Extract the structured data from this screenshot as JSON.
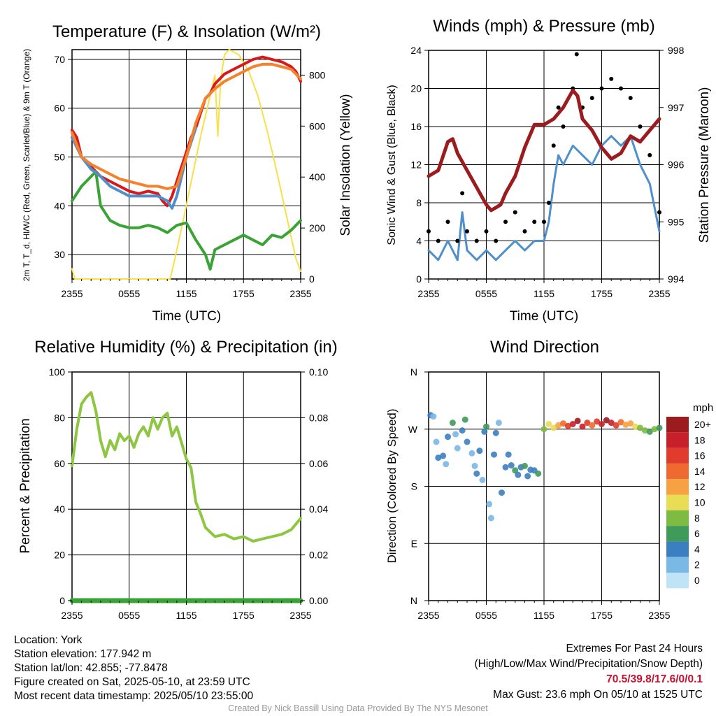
{
  "panels": {
    "temperature": {
      "title": "Temperature (F) & Insolation (W/m²)",
      "ylabel_left": "2m T, T_d, HI/WC (Red, Green, Scarlet/Blue) & 9m T (Orange)",
      "ylabel_right": "Solar Insolation (Yellow)",
      "xlabel": "Time (UTC)"
    },
    "winds": {
      "title": "Winds (mph) & Pressure (mb)",
      "ylabel_left": "Sonic Wind & Gust (Blue, Black)",
      "ylabel_right": "Station Pressure (Maroon)",
      "xlabel": "Time (UTC)"
    },
    "humidity": {
      "title": "Relative Humidity (%) & Precipitation (in)",
      "ylabel_left": "Percent & Precipitation"
    },
    "direction": {
      "title": "Wind Direction",
      "ylabel_left": "Direction (Colored By Speed)",
      "legend_title": "mph",
      "legend_labels": [
        "20+",
        "18",
        "16",
        "14",
        "12",
        "10",
        "8",
        "6",
        "4",
        "2",
        "0"
      ],
      "legend_colors": [
        "#9b1b1e",
        "#c8202a",
        "#e03b2c",
        "#ef6a2e",
        "#f6a142",
        "#e8dd55",
        "#7dbb43",
        "#3f9b5a",
        "#3c7fc0",
        "#7ab8e6",
        "#bfe3f7"
      ]
    }
  },
  "chart_data": [
    {
      "type": "line",
      "panel": "temperature",
      "x_ticks": [
        "2355",
        "0555",
        "1155",
        "1755",
        "2355"
      ],
      "x_hours": [
        0,
        24
      ],
      "ylim_left": [
        25,
        72
      ],
      "yticks_left": [
        30,
        40,
        50,
        60,
        70
      ],
      "ylim_right": [
        0,
        900
      ],
      "yticks_right": [
        0,
        200,
        400,
        600,
        800
      ],
      "series": [
        {
          "label": "2m T",
          "color": "#d7191c",
          "axis": "left",
          "x": [
            0,
            0.5,
            1,
            2,
            3,
            4,
            5,
            6,
            7,
            8,
            9,
            9.5,
            10,
            10.5,
            11,
            11.5,
            12,
            12.5,
            13,
            13.5,
            14,
            14.5,
            15,
            16,
            17,
            18,
            19,
            20,
            21,
            22,
            22.5,
            23,
            23.5,
            24
          ],
          "y": [
            55.5,
            54,
            50,
            48,
            46,
            45,
            44,
            43,
            42.5,
            43,
            42.5,
            41,
            40,
            42,
            45,
            48,
            51,
            54,
            56,
            59,
            62,
            63,
            65,
            67,
            68,
            69,
            70,
            70.5,
            70,
            69.5,
            69,
            68.5,
            67.5,
            65.5
          ]
        },
        {
          "label": "Td",
          "color": "#3aa335",
          "axis": "left",
          "x": [
            0,
            1,
            2,
            2.5,
            3,
            4,
            5,
            6,
            7,
            8,
            9,
            10,
            11,
            12,
            13,
            14,
            14.5,
            15,
            16,
            17,
            18,
            19,
            20,
            21,
            22,
            23,
            24
          ],
          "y": [
            41,
            44,
            46,
            47,
            40,
            37,
            36,
            35.5,
            35.5,
            36,
            35.5,
            34.5,
            36,
            36.5,
            33,
            30,
            27,
            31,
            32,
            33,
            34,
            33,
            32,
            34,
            33.5,
            35,
            37
          ]
        },
        {
          "label": "HI/WC",
          "color": "#4f8fcc",
          "axis": "left",
          "x": [
            0,
            1,
            2,
            3,
            4,
            5,
            6,
            7,
            8,
            9,
            10,
            10.5,
            11,
            12,
            13
          ],
          "y": [
            54,
            50,
            47.5,
            46,
            44,
            43,
            42,
            42,
            42,
            42,
            41,
            39.5,
            42,
            50,
            56
          ]
        },
        {
          "label": "9m T",
          "color": "#f4812e",
          "axis": "left",
          "x": [
            0,
            1,
            2,
            3,
            4,
            5,
            6,
            7,
            8,
            9,
            10,
            11,
            12,
            13,
            14,
            15,
            16,
            17,
            18,
            19,
            20,
            21,
            22,
            23,
            24
          ],
          "y": [
            55,
            50,
            48.5,
            47.5,
            46.5,
            45.5,
            45,
            44.5,
            44,
            44,
            43.5,
            44,
            50,
            57,
            62,
            64,
            65.5,
            66.5,
            67.5,
            68.5,
            69,
            69,
            68.5,
            68,
            66
          ]
        },
        {
          "label": "Solar Insolation",
          "color": "#f7e146",
          "axis": "right",
          "x": [
            0,
            0.3,
            1,
            5,
            9,
            10.3,
            10.8,
            11.5,
            12.5,
            13.5,
            14.5,
            15,
            15.3,
            15.6,
            16,
            16.5,
            17.5,
            18.5,
            19.5,
            20.5,
            21.5,
            22.5,
            23.5,
            24
          ],
          "y": [
            40,
            0,
            0,
            0,
            0,
            0,
            80,
            200,
            380,
            560,
            720,
            800,
            560,
            780,
            880,
            900,
            880,
            820,
            720,
            580,
            420,
            250,
            80,
            30
          ]
        }
      ]
    },
    {
      "type": "line",
      "panel": "winds",
      "x_ticks": [
        "2355",
        "0555",
        "1155",
        "1755",
        "2355"
      ],
      "x_hours": [
        0,
        24
      ],
      "ylim_left": [
        0,
        24
      ],
      "yticks_left": [
        0,
        4,
        8,
        12,
        16,
        20,
        24
      ],
      "ylim_right": [
        994,
        998
      ],
      "yticks_right": [
        994,
        995,
        996,
        997,
        998
      ],
      "series": [
        {
          "label": "Sonic Wind",
          "color": "#4f8fcc",
          "axis": "left",
          "x": [
            0,
            1,
            2,
            3,
            3.5,
            4,
            5,
            6,
            7,
            8,
            9,
            10,
            11,
            12,
            12.5,
            13,
            13.5,
            14,
            15,
            16,
            17,
            18,
            19,
            20,
            21,
            22,
            23,
            24
          ],
          "y": [
            3,
            2,
            4,
            2,
            7,
            3,
            2,
            3,
            2,
            3,
            4,
            3,
            4,
            4,
            6,
            10,
            13,
            12,
            14,
            13,
            12,
            14,
            15,
            14,
            15,
            12,
            10,
            5
          ]
        },
        {
          "label": "Gust",
          "color": "#000000",
          "axis": "left",
          "style": "dots",
          "x": [
            0,
            1,
            2,
            3,
            3.5,
            4,
            5,
            6,
            7,
            8,
            9,
            10,
            11,
            12,
            12.5,
            13,
            13.5,
            14,
            15,
            15.4,
            16,
            17,
            18,
            19,
            20,
            21,
            22,
            23,
            24
          ],
          "y": [
            5,
            4,
            6,
            4,
            9,
            5,
            4,
            5,
            4,
            6,
            7,
            5,
            6,
            6,
            8,
            14,
            18,
            16,
            20,
            23.6,
            18,
            19,
            20,
            21,
            20,
            19,
            16,
            13,
            7
          ]
        },
        {
          "label": "Station Pressure",
          "color": "#9b1b1e",
          "axis": "right",
          "x": [
            0,
            1,
            2,
            2.5,
            3,
            4,
            5,
            6,
            6.5,
            7,
            7.5,
            8,
            9,
            10,
            11,
            12,
            13,
            14,
            15,
            15.5,
            16,
            17,
            18,
            19,
            20,
            21,
            22,
            23,
            24
          ],
          "y": [
            995.8,
            995.9,
            996.4,
            996.45,
            996.2,
            995.9,
            995.6,
            995.3,
            995.2,
            995.25,
            995.3,
            995.5,
            995.8,
            996.3,
            996.7,
            996.7,
            996.8,
            997.0,
            997.3,
            997.2,
            996.8,
            996.6,
            996.3,
            996.1,
            996.2,
            996.5,
            996.4,
            996.6,
            996.8
          ]
        }
      ]
    },
    {
      "type": "line",
      "panel": "humidity",
      "x_ticks": [
        "2355",
        "0555",
        "1155",
        "1755",
        "2355"
      ],
      "x_hours": [
        0,
        24
      ],
      "ylim_left": [
        0,
        100
      ],
      "yticks_left": [
        0,
        20,
        40,
        60,
        80,
        100
      ],
      "ylim_right": [
        0,
        0.1
      ],
      "yticks_right": [
        "0.00",
        "0.02",
        "0.04",
        "0.06",
        "0.08",
        "0.10"
      ],
      "series": [
        {
          "label": "Relative Humidity",
          "color": "#8dc641",
          "axis": "left",
          "x": [
            0,
            0.5,
            1,
            1.5,
            2,
            2.5,
            3,
            3.5,
            4,
            4.5,
            5,
            5.5,
            6,
            6.5,
            7,
            7.5,
            8,
            8.5,
            9,
            9.5,
            10,
            10.5,
            11,
            12,
            12.5,
            13,
            13.5,
            14,
            14.5,
            15,
            16,
            17,
            18,
            19,
            20,
            21,
            22,
            23,
            24
          ],
          "y": [
            59,
            75,
            86,
            89,
            91,
            83,
            70,
            63,
            70,
            66,
            73,
            70,
            72,
            67,
            73,
            76,
            72,
            80,
            75,
            80,
            82,
            72,
            76,
            62,
            58,
            43,
            38,
            32,
            30,
            28,
            29,
            27,
            28,
            26,
            27,
            28,
            29,
            31,
            36
          ]
        },
        {
          "label": "Precipitation",
          "color": "#3aa335",
          "axis": "right",
          "x": [
            0,
            24
          ],
          "y": [
            0,
            0
          ]
        }
      ]
    },
    {
      "type": "scatter",
      "panel": "direction",
      "x_ticks": [
        "2355",
        "0555",
        "1155",
        "1755",
        "2355"
      ],
      "x_hours": [
        0,
        24
      ],
      "yticks": [
        "N",
        "E",
        "S",
        "W",
        "N"
      ],
      "ylim_degrees": [
        0,
        360
      ],
      "points": [
        [
          0.2,
          292,
          3
        ],
        [
          0.5,
          290,
          2
        ],
        [
          0.8,
          250,
          1
        ],
        [
          1,
          225,
          4
        ],
        [
          1.5,
          228,
          3
        ],
        [
          1.8,
          215,
          2
        ],
        [
          2,
          258,
          3
        ],
        [
          2.5,
          280,
          5
        ],
        [
          2.8,
          262,
          2
        ],
        [
          3,
          240,
          2
        ],
        [
          3.5,
          268,
          4
        ],
        [
          3.8,
          285,
          6
        ],
        [
          4,
          250,
          3
        ],
        [
          4.5,
          232,
          2
        ],
        [
          4.8,
          212,
          1
        ],
        [
          5,
          200,
          4
        ],
        [
          5.3,
          236,
          3
        ],
        [
          5.6,
          190,
          2
        ],
        [
          5.8,
          266,
          4
        ],
        [
          6,
          274,
          5
        ],
        [
          6.3,
          152,
          2
        ],
        [
          6.5,
          130,
          1
        ],
        [
          6.8,
          230,
          3
        ],
        [
          7,
          264,
          4
        ],
        [
          7.3,
          280,
          2
        ],
        [
          7.6,
          170,
          3
        ],
        [
          8,
          210,
          4
        ],
        [
          8.3,
          230,
          3
        ],
        [
          8.6,
          213,
          4
        ],
        [
          9,
          205,
          5
        ],
        [
          9.3,
          198,
          4
        ],
        [
          9.6,
          210,
          3
        ],
        [
          10,
          212,
          5
        ],
        [
          10.3,
          196,
          4
        ],
        [
          10.6,
          206,
          3
        ],
        [
          11,
          205,
          4
        ],
        [
          11.4,
          200,
          5
        ],
        [
          12,
          270,
          8
        ],
        [
          12.5,
          278,
          9
        ],
        [
          13,
          272,
          10
        ],
        [
          13.5,
          276,
          12
        ],
        [
          14,
          279,
          14
        ],
        [
          14.5,
          275,
          16
        ],
        [
          15,
          278,
          18
        ],
        [
          15.5,
          283,
          20
        ],
        [
          16,
          274,
          17
        ],
        [
          16.5,
          280,
          15
        ],
        [
          17,
          276,
          14
        ],
        [
          17.5,
          282,
          16
        ],
        [
          18,
          278,
          18
        ],
        [
          18.5,
          284,
          20
        ],
        [
          19,
          280,
          17
        ],
        [
          19.5,
          276,
          15
        ],
        [
          20,
          281,
          14
        ],
        [
          20.5,
          277,
          12
        ],
        [
          21,
          279,
          11
        ],
        [
          21.5,
          274,
          9
        ],
        [
          22,
          272,
          8
        ],
        [
          22.5,
          268,
          7
        ],
        [
          23,
          266,
          6
        ],
        [
          23.5,
          270,
          7
        ],
        [
          24,
          272,
          6
        ]
      ]
    }
  ],
  "footer": {
    "location": "Location: York",
    "elevation": "Station elevation: 177.942 m",
    "latlon": "Station lat/lon: 42.855; -77.8478",
    "created": "Figure created on Sat, 2025-05-10, at 23:59 UTC",
    "recent": "Most recent data timestamp: 2025/05/10 23:55:00",
    "extremes_title": "Extremes For Past 24 Hours",
    "extremes_subtitle": "(High/Low/Max Wind/Precipitation/Snow Depth)",
    "extremes_values": "70.5/39.8/17.6/0/0.1",
    "max_gust": "Max Gust: 23.6 mph On 05/10 at 1525 UTC",
    "credit": "Created By Nick Bassill Using Data Provided By The NYS Mesonet"
  }
}
